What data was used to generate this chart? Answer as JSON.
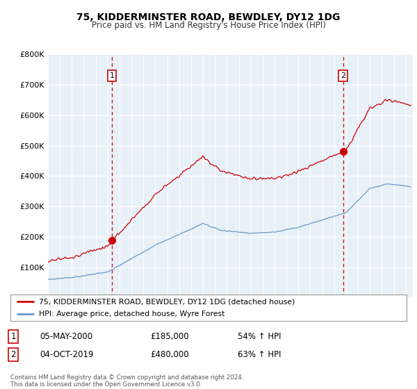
{
  "title": "75, KIDDERMINSTER ROAD, BEWDLEY, DY12 1DG",
  "subtitle": "Price paid vs. HM Land Registry's House Price Index (HPI)",
  "legend_line1": "75, KIDDERMINSTER ROAD, BEWDLEY, DY12 1DG (detached house)",
  "legend_line2": "HPI: Average price, detached house, Wyre Forest",
  "sale1_label": "1",
  "sale1_date": "05-MAY-2000",
  "sale1_price": "£185,000",
  "sale1_hpi": "54% ↑ HPI",
  "sale1_year": 2000.37,
  "sale1_value": 185000,
  "sale2_label": "2",
  "sale2_date": "04-OCT-2019",
  "sale2_price": "£480,000",
  "sale2_hpi": "63% ↑ HPI",
  "sale2_year": 2019.75,
  "sale2_value": 480000,
  "footer1": "Contains HM Land Registry data © Crown copyright and database right 2024.",
  "footer2": "This data is licensed under the Open Government Licence v3.0.",
  "red_color": "#cc0000",
  "blue_color": "#6699cc",
  "chart_bg": "#e8f0f8",
  "ylim_min": 0,
  "ylim_max": 800000,
  "background_color": "#ffffff",
  "grid_color": "#ffffff"
}
